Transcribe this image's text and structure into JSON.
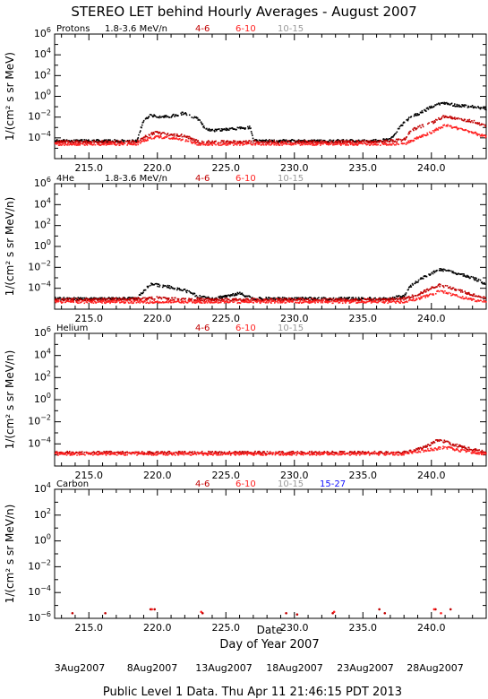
{
  "title": "STEREO LET behind Hourly Averages - August 2007",
  "xlabel_primary": "Day of Year 2007",
  "xlabel_secondary": "Date",
  "footer": "Public Level 1 Data. Thu Apr 11 21:46:15 PDT 2013",
  "colors": {
    "black": "#000000",
    "darkred": "#c00000",
    "red": "#ff2020",
    "gray": "#9a9a9a",
    "blue": "#1010ff"
  },
  "date_labels": [
    "3Aug2007",
    "8Aug2007",
    "13Aug2007",
    "18Aug2007",
    "23Aug2007",
    "28Aug2007"
  ],
  "chart_data": [
    {
      "type": "scatter",
      "panel_label": "Protons",
      "ylabel": "1/(cm² s sr MeV)",
      "xlim": [
        212.5,
        244.0
      ],
      "ylim_log10": [
        -6,
        6
      ],
      "x_ticks": [
        "215.0",
        "220.0",
        "225.0",
        "230.0",
        "235.0",
        "240.0"
      ],
      "y_ticks_exp": [
        -4,
        -2,
        0,
        2,
        4,
        6
      ],
      "legend": [
        {
          "label": "1.8-3.6 MeV/n",
          "color": "#000000"
        },
        {
          "label": "4-6",
          "color": "#c00000"
        },
        {
          "label": "6-10",
          "color": "#ff2020"
        },
        {
          "label": "10-15",
          "color": "#9a9a9a"
        }
      ],
      "series": [
        {
          "name": "1.8-3.6 MeV/n",
          "color": "#000000",
          "x": [
            212.5,
            214,
            216,
            218.5,
            219,
            219.5,
            220,
            221,
            222,
            223,
            223.5,
            224,
            225,
            226,
            226.8,
            227,
            229,
            231,
            233,
            235,
            237,
            238,
            238.5,
            239,
            239.5,
            240,
            240.5,
            241,
            242,
            243,
            244
          ],
          "log10": [
            -4.3,
            -4.3,
            -4.3,
            -4.3,
            -2.3,
            -1.8,
            -2.0,
            -1.9,
            -1.6,
            -2.2,
            -3.1,
            -3.3,
            -3.2,
            -3.1,
            -3.0,
            -4.3,
            -4.3,
            -4.3,
            -4.3,
            -4.3,
            -4.2,
            -2.5,
            -2.0,
            -1.7,
            -1.4,
            -1.0,
            -0.7,
            -0.7,
            -0.9,
            -1.0,
            -1.2
          ]
        },
        {
          "name": "4-6",
          "color": "#c00000",
          "x": [
            212.5,
            214,
            216,
            218.5,
            219,
            219.5,
            220,
            221,
            222,
            222.5,
            223,
            224,
            226,
            228,
            230,
            232,
            234,
            236,
            238,
            238.5,
            239,
            240,
            240.5,
            241,
            242,
            243,
            244
          ],
          "log10": [
            -4.4,
            -4.4,
            -4.4,
            -4.4,
            -4.0,
            -3.6,
            -3.5,
            -3.7,
            -3.8,
            -4.1,
            -4.4,
            -4.4,
            -4.4,
            -4.4,
            -4.4,
            -4.4,
            -4.4,
            -4.4,
            -4.2,
            -3.3,
            -3.0,
            -2.6,
            -2.2,
            -1.9,
            -2.2,
            -2.4,
            -2.9
          ]
        },
        {
          "name": "6-10",
          "color": "#ff2020",
          "x": [
            212.5,
            214,
            216,
            218.5,
            219,
            219.5,
            220,
            221,
            222,
            223,
            224,
            226,
            228,
            230,
            232,
            234,
            236,
            238,
            239,
            240,
            240.5,
            241,
            242,
            243,
            244
          ],
          "log10": [
            -4.6,
            -4.6,
            -4.6,
            -4.6,
            -4.3,
            -4.0,
            -3.9,
            -4.0,
            -4.2,
            -4.6,
            -4.6,
            -4.6,
            -4.6,
            -4.6,
            -4.6,
            -4.6,
            -4.6,
            -4.6,
            -4.0,
            -3.5,
            -3.1,
            -2.8,
            -3.1,
            -3.5,
            -3.9
          ]
        }
      ]
    },
    {
      "type": "scatter",
      "panel_label": "4He",
      "ylabel": "1/(cm² s sr MeV/n)",
      "xlim": [
        212.5,
        244.0
      ],
      "ylim_log10": [
        -6,
        6
      ],
      "x_ticks": [
        "215.0",
        "220.0",
        "225.0",
        "230.0",
        "235.0",
        "240.0"
      ],
      "y_ticks_exp": [
        -4,
        -2,
        0,
        2,
        4,
        6
      ],
      "legend": [
        {
          "label": "1.8-3.6 MeV/n",
          "color": "#000000"
        },
        {
          "label": "4-6",
          "color": "#c00000"
        },
        {
          "label": "6-10",
          "color": "#ff2020"
        },
        {
          "label": "10-15",
          "color": "#9a9a9a"
        }
      ],
      "series": [
        {
          "name": "1.8-3.6 MeV/n",
          "color": "#000000",
          "x": [
            212.5,
            216,
            218.5,
            219,
            219.5,
            220,
            221,
            222,
            223,
            224,
            226,
            227,
            229,
            231,
            233,
            235,
            237,
            238,
            238.5,
            239,
            240,
            240.5,
            241,
            242,
            243,
            244
          ],
          "log10": [
            -5.0,
            -5.0,
            -5.0,
            -4.3,
            -3.6,
            -3.7,
            -3.9,
            -4.2,
            -4.8,
            -5.0,
            -4.5,
            -5.0,
            -5.0,
            -5.0,
            -5.0,
            -5.0,
            -5.0,
            -4.7,
            -3.8,
            -3.3,
            -2.6,
            -2.2,
            -2.3,
            -2.6,
            -3.0,
            -3.6
          ]
        },
        {
          "name": "4-6",
          "color": "#c00000",
          "x": [
            212.5,
            216,
            219,
            220,
            221,
            224,
            228,
            232,
            236,
            238,
            239,
            240,
            240.5,
            241,
            242,
            243,
            244
          ],
          "log10": [
            -5.1,
            -5.1,
            -5.0,
            -4.9,
            -5.0,
            -5.1,
            -5.1,
            -5.1,
            -5.1,
            -5.0,
            -4.6,
            -4.0,
            -3.7,
            -3.8,
            -4.2,
            -4.6,
            -5.0
          ]
        },
        {
          "name": "6-10",
          "color": "#ff2020",
          "x": [
            212.5,
            216,
            220,
            224,
            228,
            232,
            236,
            238,
            239,
            240,
            240.5,
            241,
            242,
            243,
            244
          ],
          "log10": [
            -5.3,
            -5.3,
            -5.3,
            -5.3,
            -5.3,
            -5.3,
            -5.3,
            -5.3,
            -5.0,
            -4.6,
            -4.3,
            -4.4,
            -4.8,
            -5.1,
            -5.3
          ]
        }
      ]
    },
    {
      "type": "scatter",
      "panel_label": "Helium",
      "ylabel": "1/(cm² s sr MeV/n)",
      "xlim": [
        212.5,
        244.0
      ],
      "ylim_log10": [
        -6,
        6
      ],
      "x_ticks": [
        "215.0",
        "220.0",
        "225.0",
        "230.0",
        "235.0",
        "240.0"
      ],
      "y_ticks_exp": [
        -4,
        -2,
        0,
        2,
        4,
        6
      ],
      "legend": [
        {
          "label": "4-6",
          "color": "#c00000"
        },
        {
          "label": "6-10",
          "color": "#ff2020"
        },
        {
          "label": "10-15",
          "color": "#9a9a9a"
        }
      ],
      "series": [
        {
          "name": "4-6",
          "color": "#c00000",
          "x": [
            212.5,
            216,
            220,
            224,
            228,
            232,
            236,
            238,
            239,
            240,
            240.5,
            241,
            242,
            243,
            244
          ],
          "log10": [
            -4.8,
            -4.8,
            -4.8,
            -4.8,
            -4.8,
            -4.8,
            -4.8,
            -4.8,
            -4.5,
            -4.0,
            -3.6,
            -3.8,
            -4.2,
            -4.5,
            -4.8
          ]
        },
        {
          "name": "6-10",
          "color": "#ff2020",
          "x": [
            212.5,
            216,
            220,
            224,
            228,
            232,
            236,
            238,
            240,
            241,
            242,
            244
          ],
          "log10": [
            -4.9,
            -4.9,
            -4.9,
            -4.9,
            -4.9,
            -4.9,
            -4.9,
            -4.9,
            -4.5,
            -4.3,
            -4.6,
            -4.9
          ]
        }
      ]
    },
    {
      "type": "scatter",
      "panel_label": "Carbon",
      "ylabel": "1/(cm² s sr MeV/n)",
      "xlim": [
        212.5,
        244.0
      ],
      "ylim_log10": [
        -6,
        4
      ],
      "x_ticks": [
        "215.0",
        "220.0",
        "225.0",
        "230.0",
        "235.0",
        "240.0"
      ],
      "y_ticks_exp": [
        -6,
        -4,
        -2,
        0,
        2,
        4
      ],
      "legend": [
        {
          "label": "4-6",
          "color": "#c00000"
        },
        {
          "label": "6-10",
          "color": "#ff2020"
        },
        {
          "label": "10-15",
          "color": "#9a9a9a"
        },
        {
          "label": "15-27",
          "color": "#1010ff"
        }
      ],
      "series": [
        {
          "name": "4-6",
          "color": "#c00000",
          "x": [
            213.8,
            216.2,
            219.5,
            219.8,
            223.3,
            229.4,
            230.2,
            232.8,
            236.2,
            236.6,
            240.3,
            241.4
          ],
          "log10": [
            -5.6,
            -5.6,
            -5.3,
            -5.3,
            -5.6,
            -5.6,
            -5.7,
            -5.6,
            -5.3,
            -5.6,
            -5.3,
            -5.3
          ]
        },
        {
          "name": "6-10",
          "color": "#ff2020",
          "x": [
            219.6,
            223.2,
            232.9,
            240.2,
            240.7
          ],
          "log10": [
            -5.3,
            -5.5,
            -5.5,
            -5.3,
            -5.6
          ]
        }
      ]
    }
  ]
}
